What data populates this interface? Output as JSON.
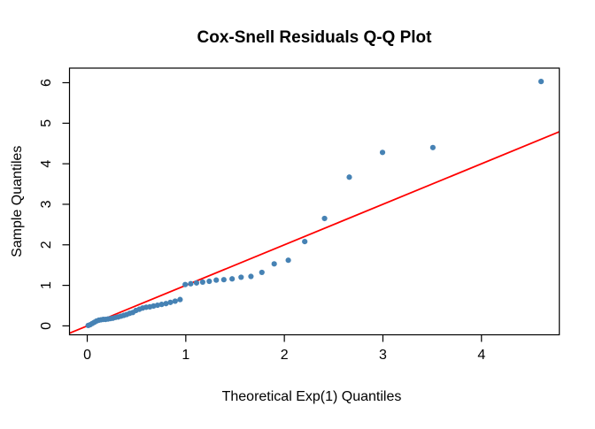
{
  "figure": {
    "background": "#FFFFFF"
  },
  "chart_data": {
    "type": "scatter",
    "title": "Cox-Snell Residuals Q-Q Plot",
    "xlabel": "Theoretical Exp(1) Quantiles",
    "ylabel": "Sample Quantiles",
    "xlim": [
      -0.18,
      4.79
    ],
    "ylim": [
      -0.22,
      6.36
    ],
    "x_ticks": [
      0,
      1,
      2,
      3,
      4
    ],
    "y_ticks": [
      0,
      1,
      2,
      3,
      4,
      5,
      6
    ],
    "grid": false,
    "legend": "none",
    "point_color": "#4682B4",
    "axis_color": "#000000",
    "reference_line": {
      "type": "abline",
      "intercept": 0,
      "slope": 1,
      "color": "#FF0000"
    },
    "points": [
      [
        0.01,
        0.01
      ],
      [
        0.03,
        0.03
      ],
      [
        0.051,
        0.06
      ],
      [
        0.073,
        0.09
      ],
      [
        0.094,
        0.12
      ],
      [
        0.117,
        0.14
      ],
      [
        0.139,
        0.15
      ],
      [
        0.163,
        0.16
      ],
      [
        0.186,
        0.16
      ],
      [
        0.211,
        0.17
      ],
      [
        0.236,
        0.18
      ],
      [
        0.261,
        0.19
      ],
      [
        0.288,
        0.21
      ],
      [
        0.315,
        0.22
      ],
      [
        0.342,
        0.24
      ],
      [
        0.371,
        0.26
      ],
      [
        0.4,
        0.28
      ],
      [
        0.431,
        0.31
      ],
      [
        0.462,
        0.33
      ],
      [
        0.494,
        0.38
      ],
      [
        0.528,
        0.41
      ],
      [
        0.562,
        0.44
      ],
      [
        0.598,
        0.46
      ],
      [
        0.635,
        0.47
      ],
      [
        0.673,
        0.49
      ],
      [
        0.713,
        0.51
      ],
      [
        0.755,
        0.53
      ],
      [
        0.799,
        0.55
      ],
      [
        0.844,
        0.58
      ],
      [
        0.892,
        0.61
      ],
      [
        0.942,
        0.65
      ],
      [
        0.994,
        1.02
      ],
      [
        1.05,
        1.04
      ],
      [
        1.109,
        1.06
      ],
      [
        1.171,
        1.08
      ],
      [
        1.238,
        1.1
      ],
      [
        1.309,
        1.13
      ],
      [
        1.386,
        1.14
      ],
      [
        1.47,
        1.16
      ],
      [
        1.561,
        1.2
      ],
      [
        1.661,
        1.22
      ],
      [
        1.772,
        1.32
      ],
      [
        1.897,
        1.53
      ],
      [
        2.04,
        1.62
      ],
      [
        2.207,
        2.08
      ],
      [
        2.408,
        2.65
      ],
      [
        2.659,
        3.67
      ],
      [
        2.996,
        4.28
      ],
      [
        3.507,
        4.4
      ],
      [
        4.605,
        6.03
      ]
    ]
  }
}
